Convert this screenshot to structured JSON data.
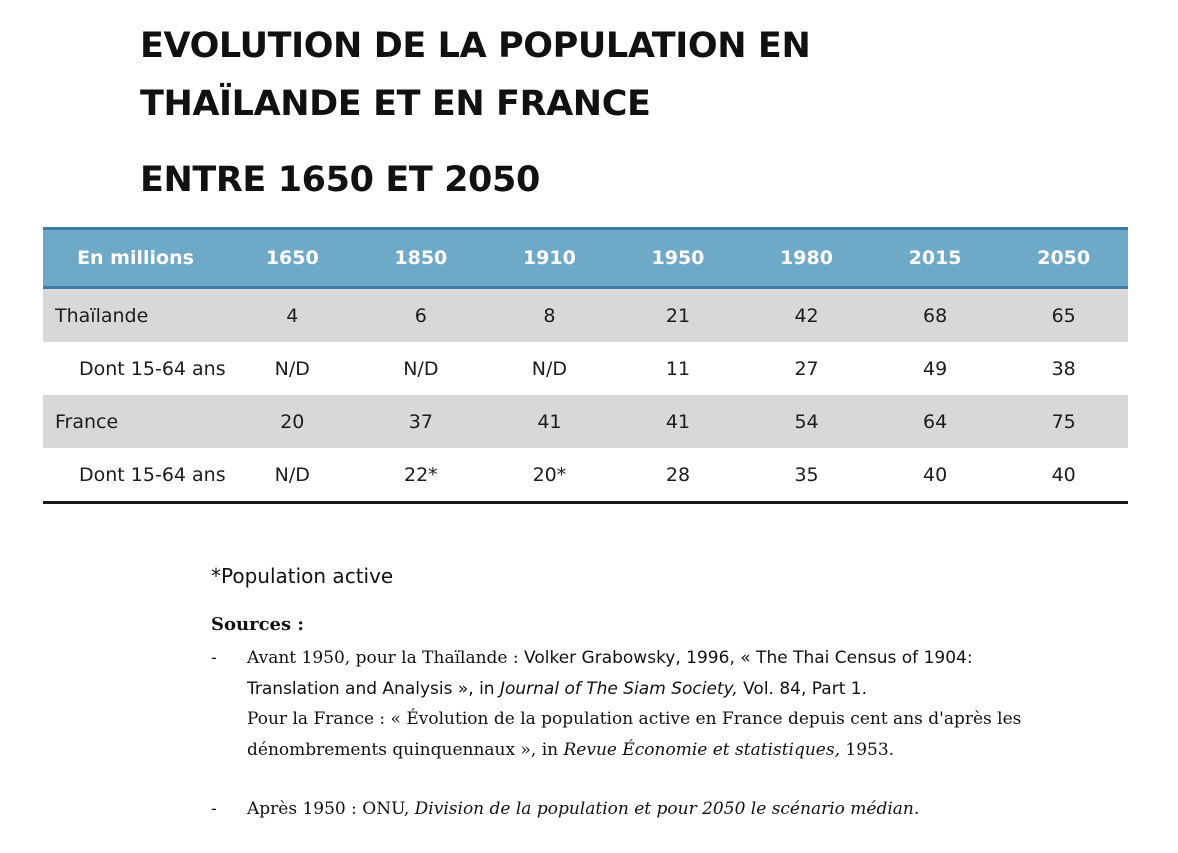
{
  "title": {
    "line1": "EVOLUTION DE LA POPULATION EN",
    "line2": "THAÏLANDE ET EN FRANCE",
    "line3": "ENTRE 1650 ET 2050"
  },
  "table": {
    "headers": [
      "En millions",
      "1650",
      "1850",
      "1910",
      "1950",
      "1980",
      "2015",
      "2050"
    ],
    "rows": [
      {
        "label": "Thaïlande",
        "values": [
          "4",
          "6",
          "8",
          "21",
          "42",
          "68",
          "65"
        ]
      },
      {
        "label": "Dont 15-64 ans",
        "values": [
          "N/D",
          "N/D",
          "N/D",
          "11",
          "27",
          "49",
          "38"
        ]
      },
      {
        "label": "France",
        "values": [
          "20",
          "37",
          "41",
          "41",
          "54",
          "64",
          "75"
        ]
      },
      {
        "label": "Dont 15-64 ans",
        "values": [
          "N/D",
          "22*",
          "20*",
          "28",
          "35",
          "40",
          "40"
        ]
      }
    ],
    "colors": {
      "header_bg": "#6fa9c8",
      "header_border": "#3e79a8",
      "row_shade": "#d8d8d8"
    }
  },
  "footnote": "*Population active",
  "sources": {
    "title": "Sources :",
    "item1": {
      "dash": "-",
      "a": "Avant 1950, pour la Thaïlande : ",
      "b": "Volker Grabowsky, 1996, « The Thai Census of 1904: Translation and Analysis », in ",
      "c": "Journal of The Siam Society,",
      "d": " Vol. 84, Part 1.",
      "e": "Pour la France : « Évolution de la population active en France depuis cent ans d'après les dénombrements quinquennaux », in ",
      "f": "Revue Économie et statistiques,",
      "g": " 1953."
    },
    "item2": {
      "dash": "-",
      "a": "Après 1950 : ONU, ",
      "b": "Division de la population et pour 2050 le scénario médian."
    }
  }
}
